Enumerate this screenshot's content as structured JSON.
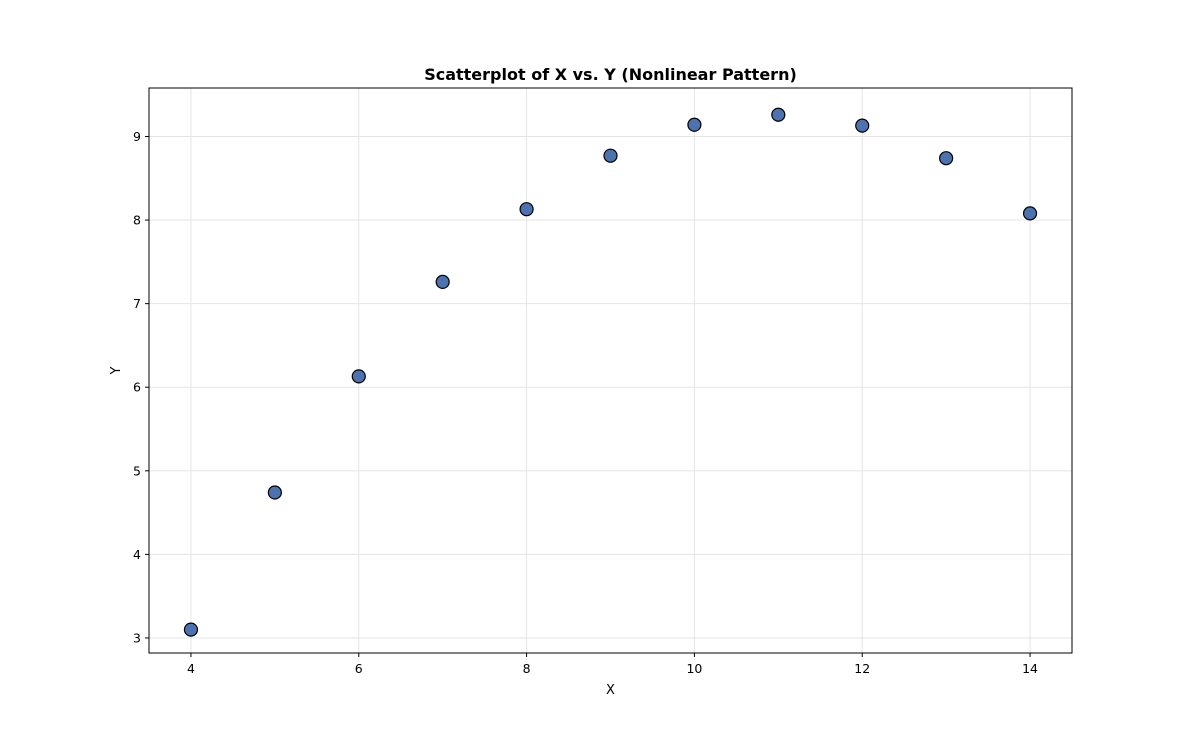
{
  "chart_data": {
    "type": "scatter",
    "title": "Scatterplot of X vs. Y (Nonlinear Pattern)",
    "xlabel": "X",
    "ylabel": "Y",
    "xlim": [
      3.5,
      14.5
    ],
    "ylim": [
      2.82,
      9.58
    ],
    "xticks": [
      4,
      6,
      8,
      10,
      12,
      14
    ],
    "yticks": [
      3,
      4,
      5,
      6,
      7,
      8,
      9
    ],
    "grid": true,
    "series": [
      {
        "x": [
          4,
          5,
          6,
          7,
          8,
          9,
          10,
          11,
          12,
          13,
          14
        ],
        "y": [
          3.1,
          4.74,
          6.13,
          7.26,
          8.13,
          8.77,
          9.14,
          9.26,
          9.13,
          8.74,
          8.08
        ]
      }
    ],
    "colors": {
      "marker_fill": "#4c72b0",
      "marker_edge": "#000000",
      "grid": "#e5e5e5",
      "axis": "#000000"
    }
  }
}
